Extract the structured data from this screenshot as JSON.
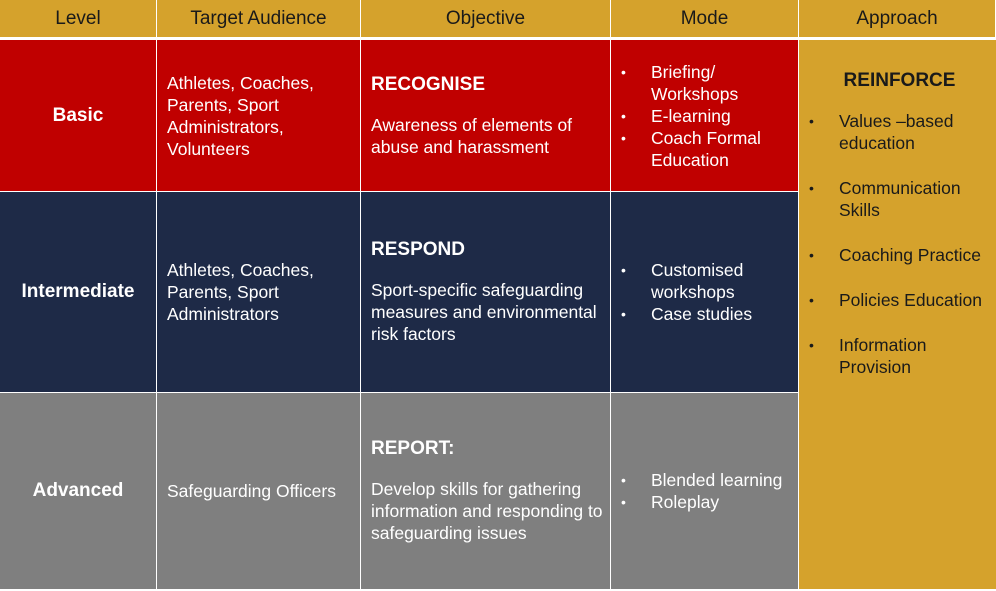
{
  "headers": [
    "Level",
    "Target Audience",
    "Objective",
    "Mode",
    "Approach"
  ],
  "rows": [
    {
      "level": "Basic",
      "audience": "Athletes, Coaches, Parents, Sport Administrators, Volunteers",
      "objective_title": "RECOGNISE",
      "objective_text": "Awareness of elements of abuse and harassment",
      "mode": [
        "Briefing/ Workshops",
        "E-learning",
        "Coach Formal Education"
      ]
    },
    {
      "level": "Intermediate",
      "audience": "Athletes, Coaches, Parents, Sport Administrators",
      "objective_title": "RESPOND",
      "objective_text": "Sport-specific safeguarding measures and environmental risk factors",
      "mode": [
        "Customised workshops",
        "Case studies"
      ]
    },
    {
      "level": "Advanced",
      "audience": "Safeguarding Officers",
      "objective_title": "REPORT:",
      "objective_text": "Develop skills for gathering information and responding to safeguarding issues",
      "mode": [
        "Blended learning",
        "Roleplay"
      ]
    }
  ],
  "approach": {
    "title": "REINFORCE",
    "items": [
      "Values –based education",
      "Communication Skills",
      "Coaching Practice",
      "Policies Education",
      "Information Provision"
    ]
  },
  "bullet_glyph": "•",
  "colors": {
    "header": "#d5a22c",
    "basic": "#c00000",
    "intermediate": "#1e2a47",
    "advanced": "#7f7f7f",
    "approach": "#d5a22c"
  }
}
